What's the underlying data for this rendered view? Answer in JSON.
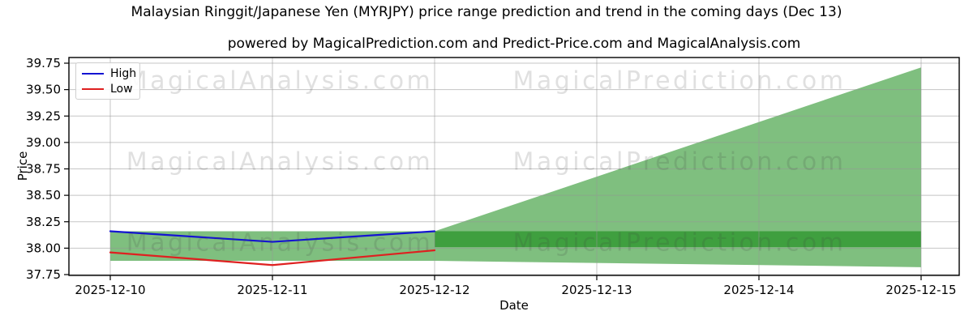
{
  "chart_data": {
    "type": "line",
    "title": "Malaysian Ringgit/Japanese Yen (MYRJPY) price range prediction and trend in the coming days (Dec 13)",
    "subtitle": "powered by MagicalPrediction.com and Predict-Price.com and MagicalAnalysis.com",
    "xlabel": "Date",
    "ylabel": "Price",
    "x_categories": [
      "2025-12-10",
      "2025-12-11",
      "2025-12-12",
      "2025-12-13",
      "2025-12-14",
      "2025-12-15"
    ],
    "y_tick_labels": [
      "37.75",
      "38.00",
      "38.25",
      "38.50",
      "38.75",
      "39.00",
      "39.25",
      "39.50",
      "39.75"
    ],
    "ylim": [
      37.74,
      39.8
    ],
    "grid": true,
    "legend": {
      "position": "upper left",
      "entries": [
        {
          "label": "High",
          "color": "#1414d2"
        },
        {
          "label": "Low",
          "color": "#df2020"
        }
      ]
    },
    "series": [
      {
        "name": "High",
        "type": "line",
        "color": "#1414d2",
        "x": [
          "2025-12-10",
          "2025-12-11",
          "2025-12-12"
        ],
        "values": [
          38.16,
          38.06,
          38.16
        ]
      },
      {
        "name": "Low",
        "type": "line",
        "color": "#df2020",
        "x": [
          "2025-12-10",
          "2025-12-11",
          "2025-12-12"
        ],
        "values": [
          37.96,
          37.84,
          37.98
        ]
      }
    ],
    "fills": [
      {
        "name": "historical-range-band",
        "shape": "rect",
        "x1": "2025-12-10",
        "x2": "2025-12-12",
        "low": 37.88,
        "high": 38.16,
        "color": "#7fbf7f"
      },
      {
        "name": "forecast-range-fan",
        "shape": "fan",
        "x1": "2025-12-12",
        "x2": "2025-12-15",
        "low1": 37.88,
        "high1": 38.16,
        "low2": 37.82,
        "high2": 39.71,
        "color": "#7fbf7f"
      },
      {
        "name": "forecast-level-band",
        "shape": "rect",
        "x1": "2025-12-12",
        "x2": "2025-12-15",
        "low": 38.01,
        "high": 38.16,
        "color": "#3f9f3f"
      }
    ],
    "watermarks": [
      "MagicalAnalysis.com",
      "MagicalPrediction.com"
    ]
  }
}
